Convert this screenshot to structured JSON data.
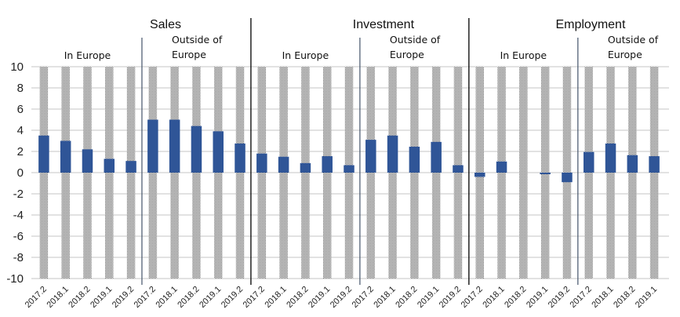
{
  "chart_data": {
    "type": "bar",
    "title": "",
    "xlabel": "",
    "ylabel": "",
    "ylim": [
      -10,
      10
    ],
    "yticks": [
      10,
      8,
      6,
      4,
      2,
      0,
      -2,
      -4,
      -6,
      -8,
      -10
    ],
    "grid": true,
    "legend": "none",
    "colors": {
      "bar": "#2F5597",
      "background_band": "#8a8a8a",
      "grid": "#d9d9d9",
      "major_divider": "#000000",
      "minor_divider": "#44546A"
    },
    "groups": [
      {
        "name": "Sales",
        "subgroups": [
          {
            "name": "In Europe",
            "label_lines": [
              "In Europe"
            ],
            "categories": [
              "2017.2",
              "2018.1",
              "2018.2",
              "2019.1",
              "2019.2"
            ],
            "values": [
              3.5,
              3.0,
              2.2,
              1.3,
              1.1
            ]
          },
          {
            "name": "Outside of Europe",
            "label_lines": [
              "Outside of",
              "Europe"
            ],
            "categories": [
              "2017.2",
              "2018.1",
              "2018.2",
              "2019.1",
              "2019.2"
            ],
            "values": [
              5.0,
              5.0,
              4.4,
              3.9,
              2.75
            ]
          }
        ]
      },
      {
        "name": "Investment",
        "subgroups": [
          {
            "name": "In Europe",
            "label_lines": [
              "In Europe"
            ],
            "categories": [
              "2017.2",
              "2018.1",
              "2018.2",
              "2019.1",
              "2019.2"
            ],
            "values": [
              1.8,
              1.5,
              0.9,
              1.55,
              0.7
            ]
          },
          {
            "name": "Outside of Europe",
            "label_lines": [
              "Outside of",
              "Europe"
            ],
            "categories": [
              "2017.2",
              "2018.1",
              "2018.2",
              "2019.1",
              "2019.2"
            ],
            "values": [
              3.1,
              3.5,
              2.45,
              2.9,
              0.7
            ]
          }
        ]
      },
      {
        "name": "Employment",
        "subgroups": [
          {
            "name": "In Europe",
            "label_lines": [
              "In Europe"
            ],
            "categories": [
              "2017.2",
              "2018.1",
              "2018.2",
              "2019.1",
              "2019.2"
            ],
            "values": [
              -0.4,
              1.05,
              0.0,
              -0.15,
              -0.9
            ]
          },
          {
            "name": "Outside of Europe",
            "label_lines": [
              "Outside of",
              "Europe"
            ],
            "categories": [
              "2017.2",
              "2018.1",
              "2018.2",
              "2019.1"
            ],
            "values": [
              1.95,
              2.75,
              1.65,
              1.55
            ]
          }
        ]
      }
    ]
  }
}
